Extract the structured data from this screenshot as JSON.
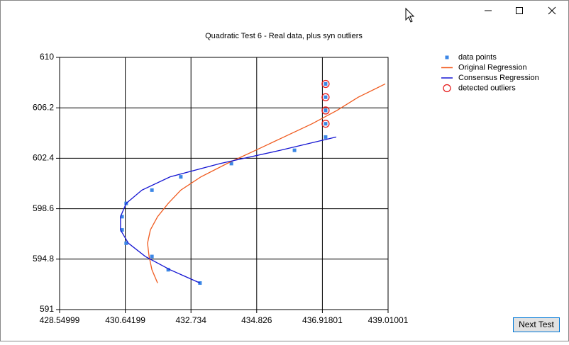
{
  "chart_data": {
    "type": "scatter",
    "title": "Quadratic Test 6 - Real data, plus syn outliers",
    "xlim": [
      428.54999,
      439.01001
    ],
    "xticks": [
      428.54999,
      430.64199,
      432.734,
      434.826,
      436.91801,
      439.01001
    ],
    "ylim": [
      591,
      610
    ],
    "yticks": [
      591,
      594.8,
      598.6,
      602.4,
      606.2,
      610
    ],
    "grid": true,
    "legend": "right",
    "series": [
      {
        "name": "data points",
        "color": "#3c87e6",
        "marker": "square",
        "x": [
          430.67,
          430.54,
          430.54,
          430.67,
          431.49,
          431.49,
          432.01,
          432.41,
          433.02,
          434.02,
          436.03,
          437.02,
          437.02,
          437.02,
          437.02,
          437.02
        ],
        "values": [
          599,
          598,
          597,
          596,
          600,
          595,
          594,
          601,
          593,
          602,
          603,
          604,
          608,
          607,
          606,
          605
        ]
      },
      {
        "name": "Original Regression",
        "color": "#f05a1e",
        "marker": "line",
        "x": [
          431.67,
          431.49,
          431.4,
          431.35,
          431.44,
          431.67,
          432.01,
          432.41,
          433.05,
          433.88,
          434.79,
          435.69,
          436.59,
          437.38,
          438.06,
          438.92
        ],
        "values": [
          593,
          594,
          595,
          596,
          597,
          598,
          599,
          600,
          601,
          602,
          603,
          604,
          605,
          606,
          607,
          608
        ]
      },
      {
        "name": "Consensus Regression",
        "color": "#1414d2",
        "marker": "line",
        "x": [
          433.02,
          432.07,
          431.28,
          430.74,
          430.49,
          430.49,
          430.67,
          431.17,
          432.07,
          433.66,
          435.58,
          437.36
        ],
        "values": [
          593,
          594,
          595,
          596,
          597,
          598,
          599,
          600,
          601,
          602,
          603,
          604
        ]
      },
      {
        "name": "detected outliers",
        "color": "#e61e1e",
        "marker": "circle",
        "x": [
          437.02,
          437.02,
          437.02,
          437.02
        ],
        "values": [
          608,
          607,
          606,
          605
        ]
      }
    ]
  },
  "window": {
    "button": "Next Test"
  }
}
